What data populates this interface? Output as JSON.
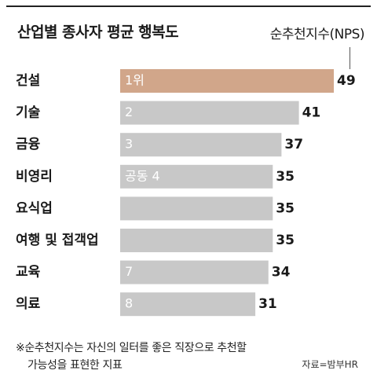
{
  "title": "산업별 종사자 평균 행복도",
  "unit": "순추천지수(NPS)",
  "footnote": {
    "line1": "※순추천지수는 자신의 일터를 좋은 직장으로 추천할",
    "line2": "가능성을 표현한 지표"
  },
  "source": "자료=밤부HR",
  "colors": {
    "highlight": "#d1a68a",
    "bar": "#c8c8c8",
    "rank_text": "#ffffff"
  },
  "chart_data": {
    "type": "bar",
    "orientation": "horizontal",
    "categories": [
      "건설",
      "기술",
      "금융",
      "비영리",
      "요식업",
      "여행 및 접객업",
      "교육",
      "의료"
    ],
    "values": [
      49,
      41,
      37,
      35,
      35,
      35,
      34,
      31
    ],
    "rank_labels": [
      "1위",
      "2",
      "3",
      "공동 4",
      "",
      "",
      "7",
      "8"
    ],
    "highlight_index": 0,
    "xlim": [
      0,
      49
    ],
    "grid": false,
    "legend": "none"
  }
}
